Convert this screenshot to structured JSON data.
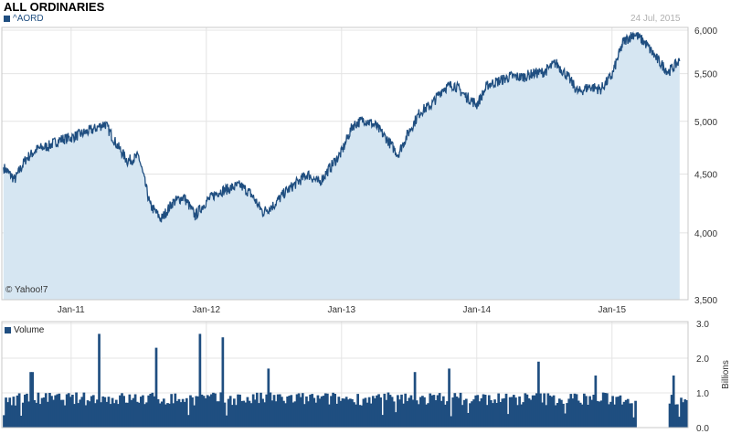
{
  "header": {
    "title": "ALL ORDINARIES",
    "ticker": "^AORD",
    "date": "24 Jul, 2015",
    "copyright": "© Yahoo!7"
  },
  "colors": {
    "line": "#1f4e80",
    "area": "#d6e6f2",
    "volume": "#1f4e80",
    "grid": "#e4e4e4"
  },
  "chart_data": [
    {
      "type": "area",
      "title": "ALL ORDINARIES",
      "series_name": "^AORD",
      "x_ticks": [
        "Jan-11",
        "Jan-12",
        "Jan-13",
        "Jan-14",
        "Jan-15"
      ],
      "y_ticks": [
        "3,500",
        "4,000",
        "4,500",
        "5,000",
        "5,500",
        "6,000"
      ],
      "ylim": [
        3500,
        6000
      ],
      "y_scale": "log",
      "grid": true,
      "x": [
        "Jul-10",
        "Aug-10",
        "Sep-10",
        "Oct-10",
        "Nov-10",
        "Dec-10",
        "Jan-11",
        "Feb-11",
        "Mar-11",
        "Apr-11",
        "May-11",
        "Jun-11",
        "Jul-11",
        "Aug-11",
        "Sep-11",
        "Oct-11",
        "Nov-11",
        "Dec-11",
        "Jan-12",
        "Feb-12",
        "Mar-12",
        "Apr-12",
        "May-12",
        "Jun-12",
        "Jul-12",
        "Aug-12",
        "Sep-12",
        "Oct-12",
        "Nov-12",
        "Dec-12",
        "Jan-13",
        "Feb-13",
        "Mar-13",
        "Apr-13",
        "May-13",
        "Jun-13",
        "Jul-13",
        "Aug-13",
        "Sep-13",
        "Oct-13",
        "Nov-13",
        "Dec-13",
        "Jan-14",
        "Feb-14",
        "Mar-14",
        "Apr-14",
        "May-14",
        "Jun-14",
        "Jul-14",
        "Aug-14",
        "Sep-14",
        "Oct-14",
        "Nov-14",
        "Dec-14",
        "Jan-15",
        "Feb-15",
        "Mar-15",
        "Apr-15",
        "May-15",
        "Jun-15",
        "Jul-15"
      ],
      "values": [
        4560,
        4450,
        4640,
        4730,
        4760,
        4820,
        4840,
        4880,
        4920,
        4980,
        4780,
        4620,
        4660,
        4230,
        4110,
        4250,
        4300,
        4140,
        4260,
        4340,
        4370,
        4400,
        4320,
        4170,
        4230,
        4340,
        4420,
        4500,
        4420,
        4560,
        4700,
        4960,
        5020,
        4960,
        4830,
        4680,
        4900,
        5100,
        5170,
        5340,
        5380,
        5260,
        5170,
        5380,
        5420,
        5470,
        5460,
        5500,
        5520,
        5620,
        5480,
        5300,
        5360,
        5330,
        5480,
        5860,
        5960,
        5840,
        5660,
        5520,
        5640
      ]
    },
    {
      "type": "bar",
      "series_name": "Volume",
      "y_unit": "Billions",
      "y_ticks": [
        "0.0",
        "1.0",
        "2.0",
        "3.0"
      ],
      "ylim": [
        0,
        3
      ],
      "typical_value": 0.85,
      "spikes": [
        {
          "x": "Sep-10",
          "value": 1.6
        },
        {
          "x": "Mar-11",
          "value": 2.7
        },
        {
          "x": "Aug-11",
          "value": 2.3
        },
        {
          "x": "Dec-11",
          "value": 2.7
        },
        {
          "x": "Feb-12",
          "value": 2.6
        },
        {
          "x": "Jun-12",
          "value": 1.7
        },
        {
          "x": "Jul-13",
          "value": 1.6
        },
        {
          "x": "Oct-13",
          "value": 1.7
        },
        {
          "x": "Jun-14",
          "value": 1.9
        },
        {
          "x": "Nov-14",
          "value": 1.5
        },
        {
          "x": "Jun-15",
          "value": 1.5
        }
      ],
      "gap": {
        "from": "Mar-15",
        "to": "Jun-15"
      }
    }
  ]
}
